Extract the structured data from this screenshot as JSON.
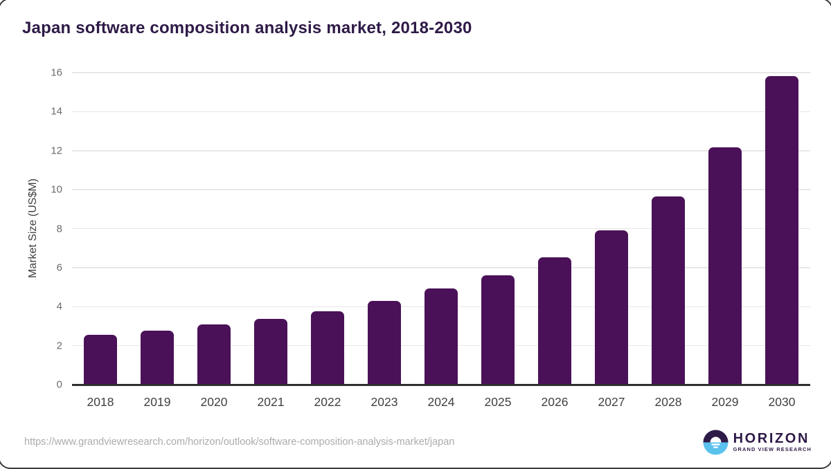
{
  "header": {
    "title": "Japan software composition analysis market, 2018-2030"
  },
  "chart_data": {
    "type": "bar",
    "title": "Japan software composition analysis market, 2018-2030",
    "categories": [
      "2018",
      "2019",
      "2020",
      "2021",
      "2022",
      "2023",
      "2024",
      "2025",
      "2026",
      "2027",
      "2028",
      "2029",
      "2030"
    ],
    "values": [
      2.57,
      2.76,
      3.08,
      3.37,
      3.76,
      4.3,
      4.92,
      5.6,
      6.52,
      7.9,
      9.66,
      12.18,
      15.83
    ],
    "xlabel": "",
    "ylabel": "Market Size (US$M)",
    "ylim": [
      0,
      16
    ],
    "yticks": [
      0,
      2,
      4,
      6,
      8,
      10,
      12,
      14,
      16
    ],
    "grid": true,
    "legend": "none",
    "bar_color": "#4A1158"
  },
  "footer": {
    "source_url": "https://www.grandviewresearch.com/horizon/outlook/software-composition-analysis-market/japan",
    "logo": {
      "icon": "horizon-sunset-icon",
      "name": "HORIZON",
      "subtitle": "GRAND VIEW RESEARCH"
    }
  },
  "colors": {
    "bar": "#4A1158",
    "title": "#2E1A47",
    "grid": "#E7E7E7",
    "axis": "#2E2E2E",
    "ytick_label": "#6B6B6B",
    "xtick_label": "#414141",
    "url_text": "#ABABAB",
    "logo_purple": "#2E1A47",
    "logo_blue": "#5BC2EE"
  }
}
